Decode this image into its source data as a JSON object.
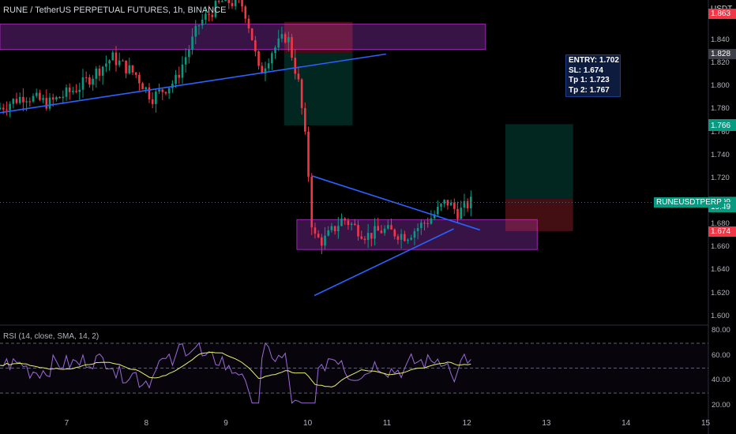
{
  "header": {
    "title": "RUNE / TetherUS PERPETUAL FUTURES, 1h, BINANCE",
    "currency": "USDT"
  },
  "rsi_title": "RSI (14, close, SMA, 14, 2)",
  "info_box": [
    "ENTRY: 1.702",
    "SL: 1.674",
    "Tp 1: 1.723",
    "Tp 2: 1.767"
  ],
  "symbol_tag": "RUNEUSDTPERP",
  "price_tags": [
    {
      "text": "1.863",
      "price": 1.863,
      "bg": "#f23645",
      "fg": "#ffffff"
    },
    {
      "text": "1.828",
      "price": 1.828,
      "bg": "#3c3f47",
      "fg": "#ffffff"
    },
    {
      "text": "1.767",
      "price": 1.767,
      "bg": "#089981",
      "fg": "#ffffff"
    },
    {
      "text": "1.766",
      "price": 1.766,
      "bg": "#089981",
      "fg": "#ffffff"
    },
    {
      "text": "1.700",
      "price": 1.7,
      "bg": "#3c3f47",
      "fg": "#ffffff"
    },
    {
      "text": "1.699",
      "price": 1.699,
      "bg": "#089981",
      "fg": "#ffffff"
    },
    {
      "text": "19:49",
      "price": 1.6955,
      "bg": "#089981",
      "fg": "#ffffff"
    },
    {
      "text": "1.674",
      "price": 1.674,
      "bg": "#f23645",
      "fg": "#ffffff"
    }
  ],
  "price_axis_labels": [
    "1.840",
    "1.820",
    "1.800",
    "1.780",
    "1.760",
    "1.740",
    "1.720",
    "1.680",
    "1.660",
    "1.640",
    "1.620",
    "1.600"
  ],
  "price_axis_values": [
    1.84,
    1.82,
    1.8,
    1.78,
    1.76,
    1.74,
    1.72,
    1.68,
    1.66,
    1.64,
    1.62,
    1.6
  ],
  "rsi_axis_labels": [
    "80.00",
    "60.00",
    "40.00",
    "20.00"
  ],
  "rsi_axis_values": [
    80,
    60,
    40,
    20
  ],
  "date_labels": [
    "7",
    "8",
    "9",
    "10",
    "11",
    "12",
    "13",
    "14",
    "15"
  ],
  "date_values": [
    7,
    8,
    9,
    10,
    11,
    12,
    13,
    14,
    15
  ],
  "colors": {
    "up": "#089981",
    "down": "#f23645",
    "trend": "#2962ff",
    "zone_fill": "#4a1a5e",
    "zone_border": "#9c27b0",
    "rsi": "#9c6bd8",
    "rsi_ma": "#e6f06a",
    "bg": "#000000"
  },
  "chart_data": {
    "type": "candlestick",
    "timeframe": "1h",
    "y_range": [
      1.595,
      1.875
    ],
    "rsi_range": [
      13,
      82
    ],
    "x_range": [
      6.15,
      15.05
    ],
    "current_price": 1.699,
    "zones": [
      {
        "name": "resistance",
        "x": [
          6.15,
          12.25
        ],
        "y": [
          1.832,
          1.854
        ]
      },
      {
        "name": "support",
        "x": [
          9.88,
          12.9
        ],
        "y": [
          1.658,
          1.684
        ]
      }
    ],
    "positions": [
      {
        "name": "past-short",
        "x": [
          9.72,
          10.58
        ],
        "entry": 1.829,
        "stop": 1.856,
        "target": 1.766
      },
      {
        "name": "current-long",
        "x": [
          12.5,
          13.35
        ],
        "entry": 1.702,
        "stop": 1.674,
        "target": 1.767
      }
    ],
    "trendlines": [
      {
        "x": [
          6.15,
          11.0
        ],
        "y": [
          1.777,
          1.828
        ]
      },
      {
        "x": [
          10.07,
          12.18
        ],
        "y": [
          1.722,
          1.675
        ]
      },
      {
        "x": [
          10.1,
          11.85
        ],
        "y": [
          1.618,
          1.676
        ]
      }
    ],
    "rsi_levels": [
      70,
      50,
      30
    ]
  }
}
